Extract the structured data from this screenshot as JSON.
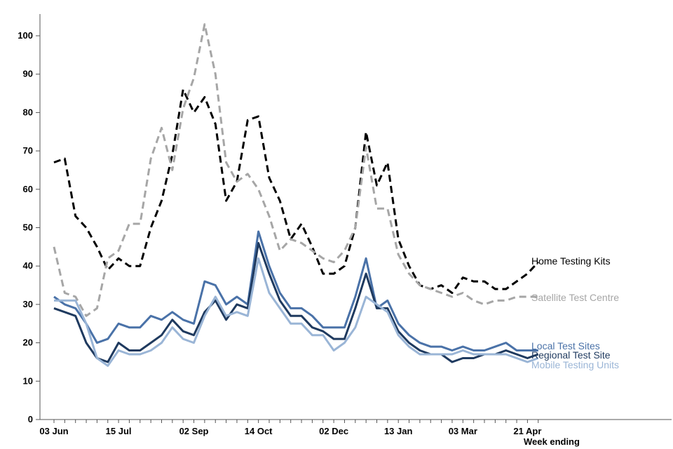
{
  "chart_data": {
    "type": "line",
    "title": "",
    "xlabel": "Week ending",
    "ylabel": "",
    "ylim": [
      0,
      105
    ],
    "yticks": [
      0,
      10,
      20,
      30,
      40,
      50,
      60,
      70,
      80,
      90,
      100
    ],
    "x_tick_labels": [
      "03 Jun",
      "15 Jul",
      "02 Sep",
      "14 Oct",
      "02 Dec",
      "13 Jan",
      "03 Mar",
      "21 Apr"
    ],
    "x_tick_indices": [
      0,
      6,
      13,
      19,
      26,
      32,
      38,
      44
    ],
    "n_weeks": 46,
    "grid": false,
    "legend": "direct labels at line ends",
    "series": [
      {
        "name": "Home Testing Kits",
        "color": "#000000",
        "style": "dashed",
        "values": [
          67,
          68,
          53,
          50,
          45,
          39,
          42,
          40,
          40,
          50,
          57,
          69,
          86,
          80,
          84,
          77,
          57,
          62,
          78,
          79,
          63,
          57,
          47,
          51,
          45,
          38,
          38,
          40,
          50,
          75,
          61,
          67,
          47,
          40,
          35,
          34,
          35,
          33,
          37,
          36,
          36,
          34,
          34,
          36,
          38,
          41
        ]
      },
      {
        "name": "Satellite Test Centre",
        "color": "#a6a6a6",
        "style": "dashed",
        "values": [
          45,
          33,
          32,
          27,
          29,
          42,
          44,
          51,
          51,
          68,
          76,
          65,
          81,
          89,
          103,
          90,
          67,
          62,
          64,
          60,
          53,
          44,
          47,
          46,
          44,
          42,
          41,
          44,
          50,
          71,
          55,
          55,
          43,
          38,
          35,
          34,
          33,
          32,
          33,
          31,
          30,
          31,
          31,
          32,
          32,
          32
        ]
      },
      {
        "name": "Local Test Sites",
        "color": "#4a72a8",
        "style": "solid",
        "values": [
          32,
          30,
          29,
          25,
          20,
          21,
          25,
          24,
          24,
          27,
          26,
          28,
          26,
          25,
          36,
          35,
          30,
          32,
          30,
          49,
          40,
          33,
          29,
          29,
          27,
          24,
          24,
          24,
          32,
          42,
          29,
          31,
          25,
          22,
          20,
          19,
          19,
          18,
          19,
          18,
          18,
          19,
          20,
          18,
          18,
          18
        ]
      },
      {
        "name": "Regional Test Site",
        "color": "#1f3a5f",
        "style": "solid",
        "values": [
          29,
          28,
          27,
          20,
          16,
          15,
          20,
          18,
          18,
          20,
          22,
          26,
          23,
          22,
          28,
          31,
          26,
          30,
          29,
          46,
          38,
          31,
          27,
          27,
          24,
          23,
          21,
          21,
          29,
          38,
          29,
          29,
          23,
          20,
          18,
          17,
          17,
          15,
          16,
          16,
          17,
          17,
          18,
          17,
          16,
          17
        ]
      },
      {
        "name": "Mobile Testing Units",
        "color": "#9ab5d6",
        "style": "solid",
        "values": [
          31,
          31,
          31,
          25,
          16,
          14,
          18,
          17,
          17,
          18,
          20,
          24,
          21,
          20,
          27,
          32,
          27,
          28,
          27,
          42,
          33,
          29,
          25,
          25,
          22,
          22,
          18,
          20,
          24,
          32,
          30,
          28,
          22,
          19,
          17,
          17,
          17,
          17,
          18,
          17,
          17,
          17,
          17,
          16,
          15,
          16
        ]
      }
    ]
  }
}
